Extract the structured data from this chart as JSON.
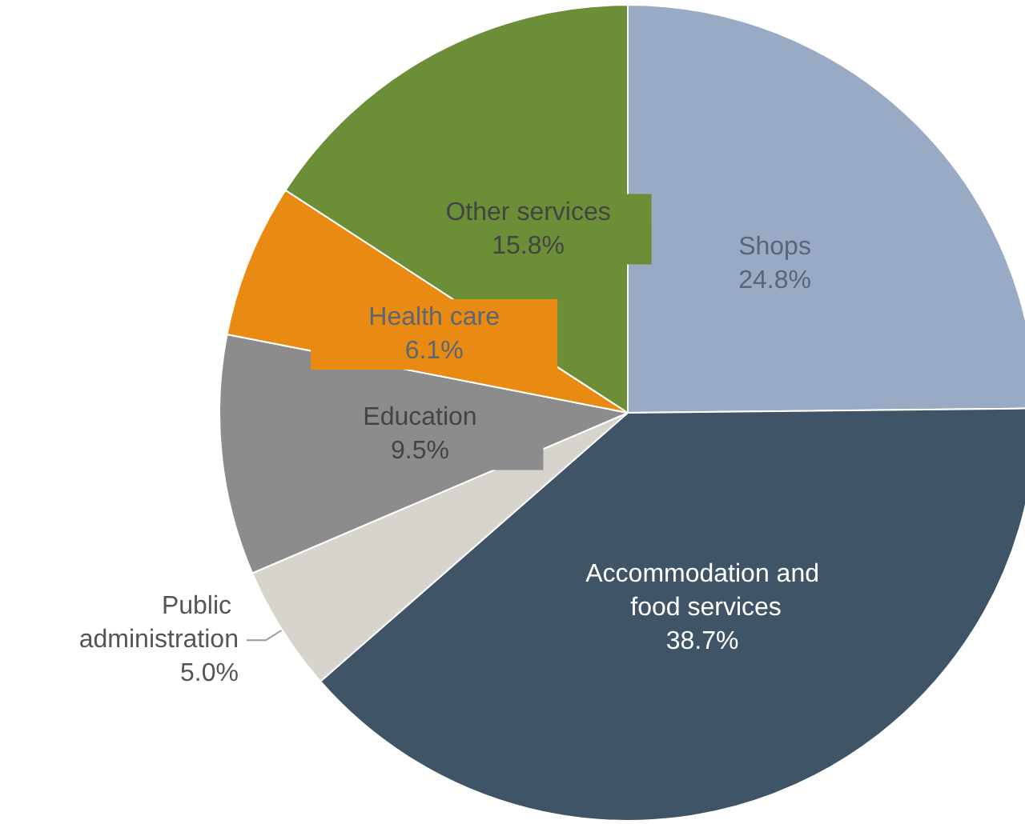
{
  "chart_data": {
    "type": "pie",
    "categories": [
      "Shops",
      "Accommodation and food services",
      "Public administration",
      "Education",
      "Health care",
      "Other services"
    ],
    "values": [
      24.8,
      38.7,
      5.0,
      9.5,
      6.1,
      15.8
    ],
    "value_labels": [
      "24.8%",
      "38.7%",
      "5.0%",
      "9.5%",
      "6.1%",
      "15.8%"
    ],
    "colors": [
      "#98aac4",
      "#3f5467",
      "#d6d4cc",
      "#8c8c8c",
      "#e98b12",
      "#6c8e37"
    ],
    "legend": false
  }
}
